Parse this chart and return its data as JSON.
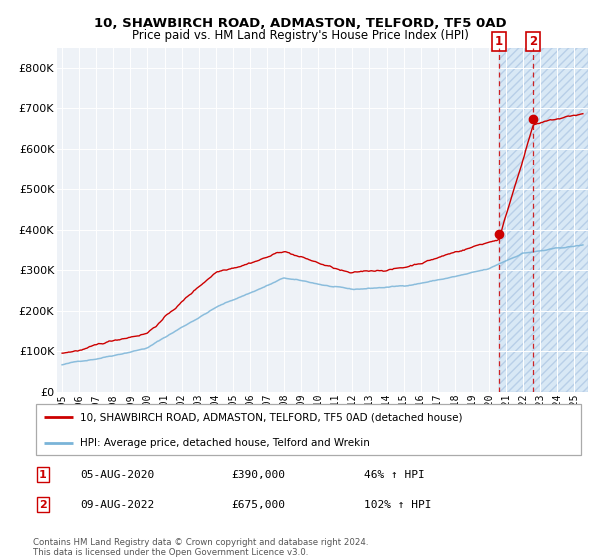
{
  "title": "10, SHAWBIRCH ROAD, ADMASTON, TELFORD, TF5 0AD",
  "subtitle": "Price paid vs. HM Land Registry's House Price Index (HPI)",
  "legend_line1": "10, SHAWBIRCH ROAD, ADMASTON, TELFORD, TF5 0AD (detached house)",
  "legend_line2": "HPI: Average price, detached house, Telford and Wrekin",
  "footnote": "Contains HM Land Registry data © Crown copyright and database right 2024.\nThis data is licensed under the Open Government Licence v3.0.",
  "hpi_color": "#7ab4d8",
  "price_color": "#cc0000",
  "marker_color": "#cc0000",
  "sale1_date": "05-AUG-2020",
  "sale1_price": 390000,
  "sale1_label": "46% ↑ HPI",
  "sale1_year": 2020.58,
  "sale2_date": "09-AUG-2022",
  "sale2_price": 675000,
  "sale2_label": "102% ↑ HPI",
  "sale2_year": 2022.58,
  "ylim": [
    0,
    850000
  ],
  "yticks": [
    0,
    100000,
    200000,
    300000,
    400000,
    500000,
    600000,
    700000,
    800000
  ],
  "xlim_start": 1994.7,
  "xlim_end": 2025.8,
  "bg_color": "#eef2f7",
  "hatch_color": "#d8e8f5",
  "hatch_region_start": 2020.58,
  "hatch_region_end": 2025.8
}
